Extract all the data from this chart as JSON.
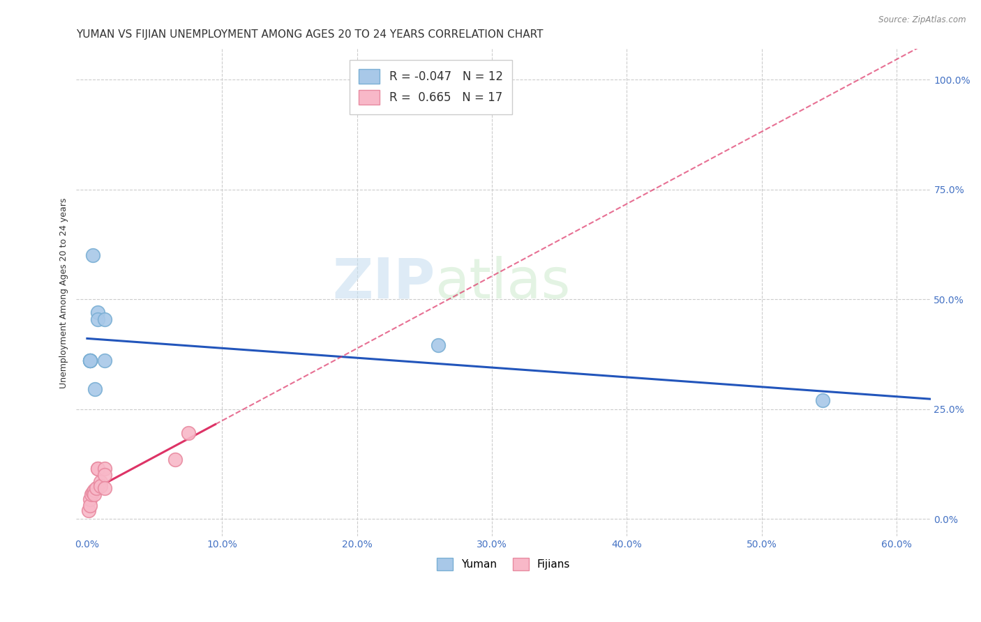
{
  "title": "YUMAN VS FIJIAN UNEMPLOYMENT AMONG AGES 20 TO 24 YEARS CORRELATION CHART",
  "source": "Source: ZipAtlas.com",
  "xlabel_ticks": [
    "0.0%",
    "10.0%",
    "20.0%",
    "30.0%",
    "40.0%",
    "50.0%",
    "60.0%"
  ],
  "xlabel_vals": [
    0.0,
    0.1,
    0.2,
    0.3,
    0.4,
    0.5,
    0.6
  ],
  "ylabel_ticks": [
    "0.0%",
    "25.0%",
    "50.0%",
    "75.0%",
    "100.0%"
  ],
  "ylabel_vals": [
    0.0,
    0.25,
    0.5,
    0.75,
    1.0
  ],
  "xlim": [
    -0.008,
    0.625
  ],
  "ylim": [
    -0.04,
    1.07
  ],
  "yuman_x": [
    0.002,
    0.002,
    0.002,
    0.002,
    0.004,
    0.006,
    0.008,
    0.008,
    0.013,
    0.013,
    0.26,
    0.545
  ],
  "yuman_y": [
    0.36,
    0.36,
    0.36,
    0.36,
    0.6,
    0.295,
    0.47,
    0.455,
    0.455,
    0.36,
    0.395,
    0.27
  ],
  "fijian_x": [
    0.001,
    0.002,
    0.002,
    0.003,
    0.004,
    0.005,
    0.005,
    0.007,
    0.008,
    0.008,
    0.01,
    0.01,
    0.013,
    0.013,
    0.013,
    0.065,
    0.075
  ],
  "fijian_y": [
    0.02,
    0.045,
    0.03,
    0.055,
    0.06,
    0.065,
    0.055,
    0.07,
    0.115,
    0.115,
    0.085,
    0.075,
    0.115,
    0.1,
    0.07,
    0.135,
    0.195
  ],
  "yuman_color": "#a8c8e8",
  "yuman_edge": "#7aafd4",
  "fijian_color": "#f8b8c8",
  "fijian_edge": "#e88aa0",
  "trend_yuman_color": "#2255bb",
  "trend_fijian_color": "#dd3366",
  "yuman_R": -0.047,
  "yuman_N": 12,
  "fijian_R": 0.665,
  "fijian_N": 17,
  "marker_size": 200,
  "watermark_zip": "ZIP",
  "watermark_atlas": "atlas",
  "background_color": "#ffffff",
  "grid_color": "#cccccc",
  "title_fontsize": 11,
  "axis_label_fontsize": 9,
  "tick_fontsize": 10,
  "legend_R_color": "#2255bb",
  "legend_N_color": "#2255bb"
}
